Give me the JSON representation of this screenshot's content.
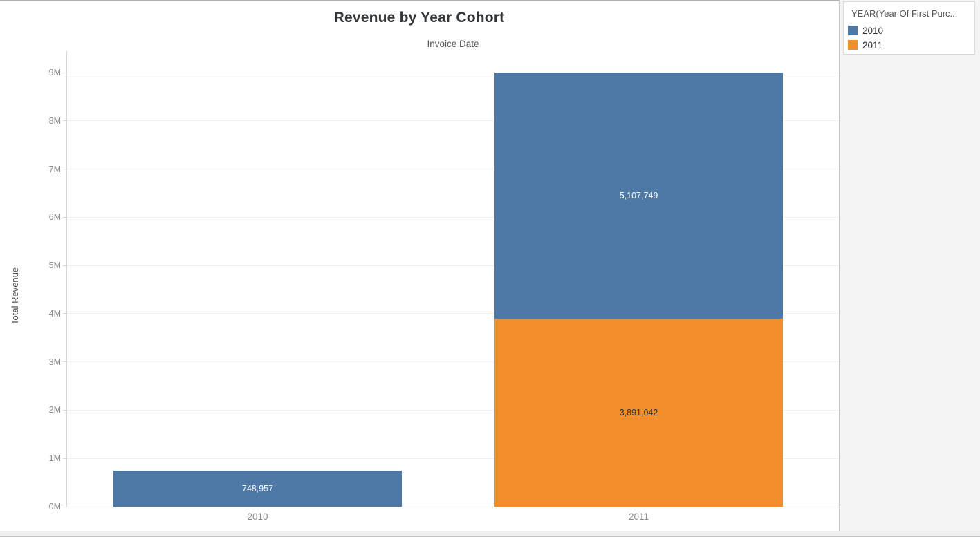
{
  "title": "Revenue by Year Cohort",
  "subtitle": "Invoice Date",
  "y_axis": {
    "label": "Total Revenue",
    "ticks": [
      "0M",
      "1M",
      "2M",
      "3M",
      "4M",
      "5M",
      "6M",
      "7M",
      "8M",
      "9M"
    ]
  },
  "x_axis": {
    "categories": [
      "2010",
      "2011"
    ]
  },
  "legend": {
    "title": "YEAR(Year Of First Purc...",
    "items": [
      {
        "label": "2010",
        "color": "#4e79a7"
      },
      {
        "label": "2011",
        "color": "#f28e2b"
      }
    ]
  },
  "chart_data": {
    "type": "bar",
    "stacked": true,
    "title": "Revenue by Year Cohort",
    "subtitle": "Invoice Date",
    "xlabel": "Invoice Date",
    "ylabel": "Total Revenue",
    "categories": [
      "2010",
      "2011"
    ],
    "series": [
      {
        "name": "2010",
        "color": "#4e79a7",
        "label_color": "#ffffff",
        "values": [
          748957,
          5107749
        ]
      },
      {
        "name": "2011",
        "color": "#f28e2b",
        "label_color": "#333333",
        "values": [
          0,
          3891042
        ]
      }
    ],
    "stack_order": "last_series_at_bottom",
    "segment_labels": {
      "2010": [
        "748,957"
      ],
      "2011": [
        "3,891,042",
        "5,107,749"
      ]
    },
    "ylim": [
      0,
      9000000
    ],
    "ytick_interval": 1000000,
    "ytick_format": "millions_M",
    "grid": true,
    "legend_position": "top-right"
  }
}
